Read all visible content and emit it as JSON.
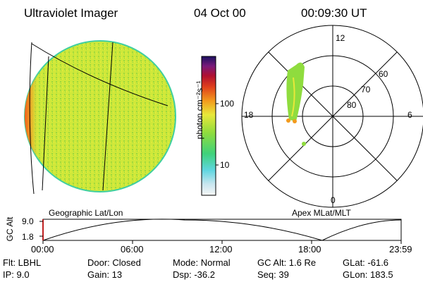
{
  "header": {
    "instrument": "Ultraviolet Imager",
    "date": "04 Oct 00",
    "time": "00:09:30 UT"
  },
  "colorbar": {
    "unit_label": "photon cm⁻²s⁻¹",
    "ticks": [
      "100",
      "10"
    ]
  },
  "polar_plot": {
    "mlt_labels": [
      "12",
      "18",
      "6",
      "0"
    ],
    "mlat_labels": [
      "60",
      "70",
      "80"
    ]
  },
  "timeline": {
    "left_caption": "Geographic Lat/Lon",
    "right_caption": "Apex MLat/MLT",
    "ylabel": "GC Alt",
    "yticks": [
      "9.0",
      "1.8"
    ],
    "xticks": [
      "00:00",
      "06:00",
      "12:00",
      "18:00",
      "23:59"
    ]
  },
  "info": {
    "flt": "Flt: LBHL",
    "door": "Door: Closed",
    "mode": "Mode: Normal",
    "gcalt": "GC Alt: 1.6 Re",
    "glat": "GLat: -61.6",
    "ip": "IP: 9.0",
    "gain": "Gain: 13",
    "dsp": "Dsp: -36.2",
    "seq": "Seq: 39",
    "glon": "GLon: 183.5"
  }
}
